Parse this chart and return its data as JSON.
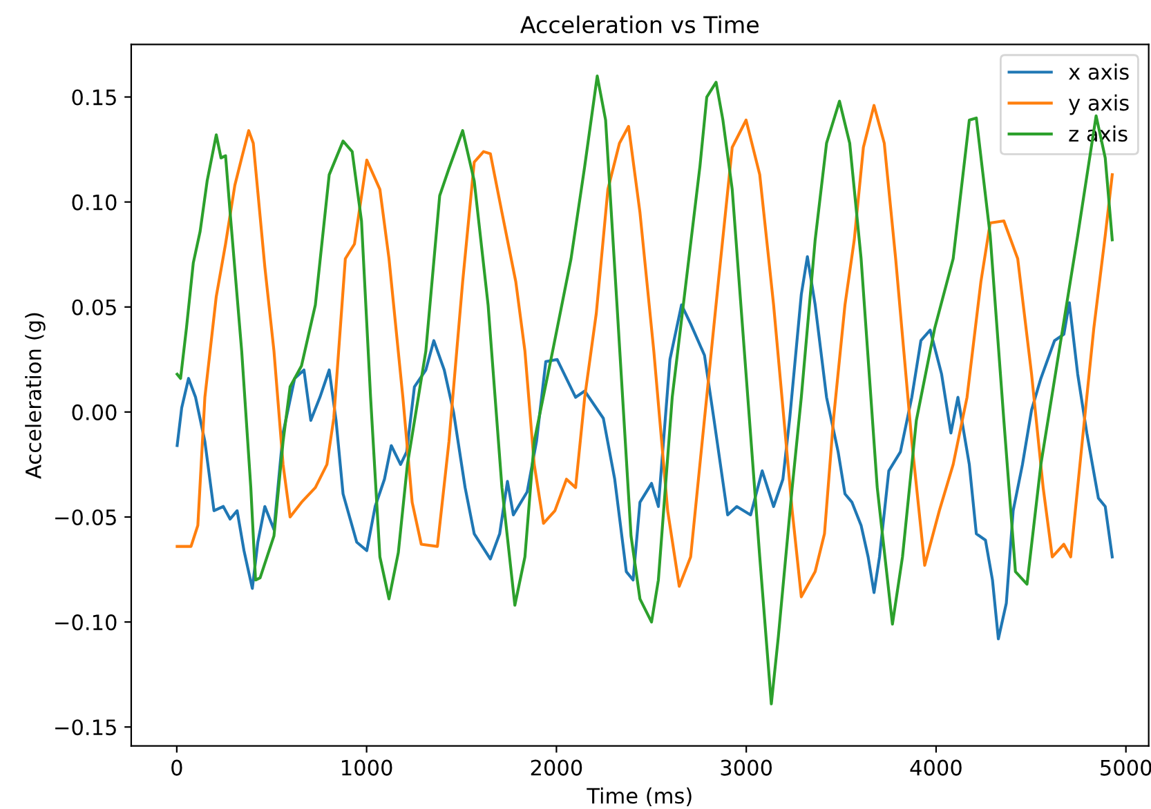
{
  "chart_data": {
    "type": "line",
    "title": "Acceleration vs Time",
    "xlabel": "Time (ms)",
    "ylabel": "Acceleration (g)",
    "xlim": [
      -240,
      5120
    ],
    "xticks": [
      0,
      1000,
      2000,
      3000,
      4000,
      5000
    ],
    "ylim": [
      -0.159,
      0.175
    ],
    "yticks": [
      {
        "value": -0.15,
        "label": "−0.15"
      },
      {
        "value": -0.1,
        "label": "−0.10"
      },
      {
        "value": -0.05,
        "label": "−0.05"
      },
      {
        "value": 0,
        "label": "0.00"
      },
      {
        "value": 0.05,
        "label": "0.05"
      },
      {
        "value": 0.1,
        "label": "0.10"
      },
      {
        "value": 0.15,
        "label": "0.15"
      }
    ],
    "grid": false,
    "legend": "top right",
    "series": [
      {
        "name": "x axis",
        "color": "#1f77b4",
        "x": [
          2,
          26,
          62,
          99,
          148,
          196,
          245,
          281,
          318,
          354,
          398,
          427,
          464,
          512,
          560,
          621,
          670,
          706,
          754,
          803,
          839,
          876,
          948,
          1001,
          1045,
          1094,
          1130,
          1179,
          1211,
          1252,
          1312,
          1354,
          1409,
          1458,
          1519,
          1567,
          1652,
          1701,
          1742,
          1773,
          1846,
          1895,
          1944,
          2004,
          2101,
          2149,
          2247,
          2307,
          2368,
          2404,
          2440,
          2501,
          2537,
          2598,
          2659,
          2707,
          2780,
          2829,
          2902,
          2950,
          3023,
          3084,
          3144,
          3193,
          3229,
          3290,
          3322,
          3363,
          3423,
          3484,
          3520,
          3557,
          3605,
          3642,
          3673,
          3702,
          3751,
          3812,
          3872,
          3920,
          3969,
          4029,
          4078,
          4115,
          4175,
          4212,
          4260,
          4297,
          4328,
          4370,
          4406,
          4455,
          4503,
          4552,
          4624,
          4673,
          4702,
          4746,
          4794,
          4855,
          4891,
          4928
        ],
        "values": [
          -0.016,
          0.002,
          0.016,
          0.007,
          -0.014,
          -0.047,
          -0.045,
          -0.051,
          -0.047,
          -0.066,
          -0.084,
          -0.062,
          -0.045,
          -0.056,
          -0.01,
          0.016,
          0.02,
          -0.004,
          0.007,
          0.02,
          -0.004,
          -0.039,
          -0.062,
          -0.066,
          -0.045,
          -0.032,
          -0.016,
          -0.025,
          -0.019,
          0.012,
          0.02,
          0.034,
          0.02,
          0.0,
          -0.036,
          -0.058,
          -0.07,
          -0.058,
          -0.033,
          -0.049,
          -0.038,
          -0.014,
          0.024,
          0.025,
          0.007,
          0.01,
          -0.003,
          -0.032,
          -0.076,
          -0.08,
          -0.043,
          -0.034,
          -0.045,
          0.025,
          0.051,
          0.042,
          0.027,
          -0.003,
          -0.049,
          -0.045,
          -0.049,
          -0.028,
          -0.045,
          -0.032,
          -0.003,
          0.056,
          0.074,
          0.051,
          0.007,
          -0.019,
          -0.039,
          -0.043,
          -0.054,
          -0.069,
          -0.086,
          -0.069,
          -0.028,
          -0.019,
          0.007,
          0.034,
          0.039,
          0.018,
          -0.01,
          0.007,
          -0.025,
          -0.058,
          -0.061,
          -0.08,
          -0.108,
          -0.091,
          -0.047,
          -0.025,
          0.001,
          0.016,
          0.034,
          0.037,
          0.052,
          0.018,
          -0.01,
          -0.041,
          -0.045,
          -0.069
        ]
      },
      {
        "name": "y axis",
        "color": "#ff7f0e",
        "x": [
          2,
          75,
          111,
          148,
          208,
          257,
          306,
          342,
          379,
          403,
          464,
          512,
          560,
          597,
          657,
          730,
          791,
          827,
          888,
          936,
          1001,
          1070,
          1118,
          1191,
          1240,
          1288,
          1373,
          1434,
          1506,
          1567,
          1616,
          1652,
          1713,
          1786,
          1834,
          1883,
          1932,
          1992,
          2053,
          2101,
          2149,
          2210,
          2271,
          2332,
          2380,
          2440,
          2513,
          2586,
          2647,
          2707,
          2768,
          2853,
          2926,
          2999,
          3071,
          3144,
          3242,
          3290,
          3363,
          3412,
          3460,
          3520,
          3569,
          3617,
          3673,
          3727,
          3787,
          3872,
          3940,
          4017,
          4090,
          4163,
          4236,
          4285,
          4357,
          4430,
          4503,
          4564,
          4612,
          4673,
          4709,
          4770,
          4831,
          4891,
          4928
        ],
        "values": [
          -0.064,
          -0.064,
          -0.054,
          0.007,
          0.055,
          0.08,
          0.108,
          0.121,
          0.134,
          0.128,
          0.069,
          0.029,
          -0.025,
          -0.05,
          -0.043,
          -0.036,
          -0.025,
          -0.003,
          0.073,
          0.08,
          0.12,
          0.106,
          0.073,
          0.007,
          -0.043,
          -0.063,
          -0.064,
          -0.014,
          0.062,
          0.119,
          0.124,
          0.123,
          0.095,
          0.062,
          0.029,
          -0.025,
          -0.053,
          -0.047,
          -0.032,
          -0.036,
          0.007,
          0.047,
          0.106,
          0.128,
          0.136,
          0.095,
          0.029,
          -0.047,
          -0.083,
          -0.069,
          -0.014,
          0.062,
          0.126,
          0.139,
          0.113,
          0.051,
          -0.047,
          -0.088,
          -0.076,
          -0.058,
          -0.003,
          0.051,
          0.082,
          0.126,
          0.146,
          0.128,
          0.073,
          -0.014,
          -0.073,
          -0.047,
          -0.025,
          0.007,
          0.062,
          0.09,
          0.091,
          0.073,
          0.018,
          -0.036,
          -0.069,
          -0.063,
          -0.069,
          -0.014,
          0.04,
          0.084,
          0.113
        ]
      },
      {
        "name": "z axis",
        "color": "#2ca02c",
        "x": [
          2,
          20,
          51,
          87,
          123,
          160,
          208,
          233,
          257,
          281,
          342,
          390,
          415,
          439,
          512,
          560,
          597,
          657,
          730,
          803,
          876,
          924,
          973,
          1021,
          1070,
          1118,
          1167,
          1215,
          1312,
          1385,
          1434,
          1506,
          1567,
          1640,
          1713,
          1781,
          1834,
          1883,
          1980,
          2077,
          2149,
          2215,
          2259,
          2319,
          2393,
          2440,
          2501,
          2537,
          2610,
          2683,
          2756,
          2792,
          2841,
          2877,
          2926,
          2999,
          3071,
          3132,
          3169,
          3242,
          3290,
          3363,
          3423,
          3491,
          3545,
          3605,
          3690,
          3770,
          3823,
          3896,
          3993,
          4090,
          4175,
          4212,
          4285,
          4357,
          4418,
          4479,
          4552,
          4648,
          4746,
          4843,
          4891,
          4928
        ],
        "values": [
          0.018,
          0.016,
          0.04,
          0.071,
          0.086,
          0.11,
          0.132,
          0.121,
          0.122,
          0.095,
          0.029,
          -0.036,
          -0.08,
          -0.079,
          -0.059,
          -0.014,
          0.012,
          0.022,
          0.051,
          0.113,
          0.129,
          0.124,
          0.091,
          0.007,
          -0.069,
          -0.089,
          -0.067,
          -0.025,
          0.029,
          0.103,
          0.116,
          0.134,
          0.11,
          0.051,
          -0.036,
          -0.092,
          -0.069,
          -0.014,
          0.029,
          0.073,
          0.117,
          0.16,
          0.139,
          0.051,
          -0.059,
          -0.089,
          -0.1,
          -0.08,
          0.007,
          0.062,
          0.117,
          0.15,
          0.157,
          0.139,
          0.106,
          0.018,
          -0.069,
          -0.139,
          -0.107,
          -0.036,
          0.007,
          0.082,
          0.128,
          0.148,
          0.128,
          0.073,
          -0.036,
          -0.101,
          -0.069,
          -0.004,
          0.04,
          0.073,
          0.139,
          0.14,
          0.084,
          -0.004,
          -0.076,
          -0.082,
          -0.025,
          0.029,
          0.084,
          0.141,
          0.121,
          0.082
        ]
      }
    ]
  }
}
